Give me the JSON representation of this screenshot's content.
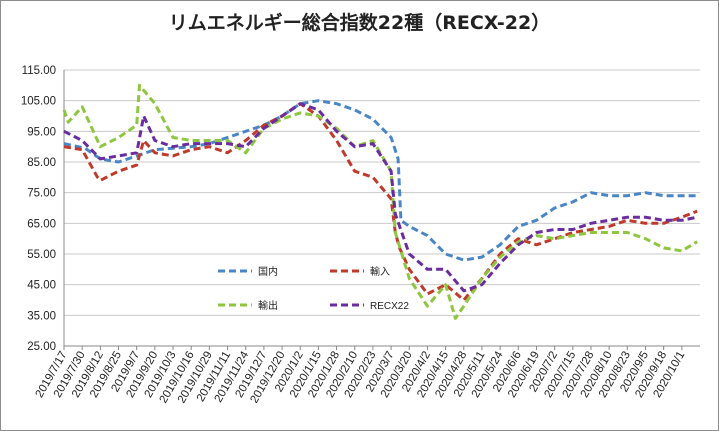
{
  "chart_data": {
    "type": "line",
    "title": "リムエネルギー総合指数22種（RECX-22）",
    "ylim": [
      25,
      115
    ],
    "y_ticks": [
      "115.00",
      "105.00",
      "95.00",
      "85.00",
      "75.00",
      "65.00",
      "55.00",
      "45.00",
      "35.00",
      "25.00"
    ],
    "y_tick_values": [
      115,
      105,
      95,
      85,
      75,
      65,
      55,
      45,
      35,
      25
    ],
    "grid": "horizontal",
    "legend_placement": "inside-bottom-left",
    "x_ticks": [
      "2019/7/17",
      "2019/7/30",
      "2019/8/12",
      "2019/8/25",
      "2019/9/7",
      "2019/9/20",
      "2019/10/3",
      "2019/10/16",
      "2019/10/29",
      "2019/11/11",
      "2019/11/24",
      "2019/12/7",
      "2019/12/20",
      "2020/1/2",
      "2020/1/15",
      "2020/1/28",
      "2020/2/10",
      "2020/2/23",
      "2020/3/7",
      "2020/3/20",
      "2020/4/2",
      "2020/4/15",
      "2020/4/28",
      "2020/5/11",
      "2020/5/24",
      "2020/6/6",
      "2020/6/19",
      "2020/7/2",
      "2020/7/15",
      "2020/7/28",
      "2020/8/10",
      "2020/8/23",
      "2020/9/5",
      "2020/9/18",
      "2020/10/1"
    ],
    "x_start": "2019/7/17",
    "x_end": "2020/10/14",
    "series": [
      {
        "name": "国内",
        "color": "#4a86c5",
        "x": [
          "2019/7/17",
          "2019/8/1",
          "2019/8/12",
          "2019/8/25",
          "2019/9/7",
          "2019/9/20",
          "2019/10/3",
          "2019/10/16",
          "2019/10/29",
          "2019/11/11",
          "2019/11/24",
          "2019/12/7",
          "2019/12/20",
          "2020/1/2",
          "2020/1/15",
          "2020/1/28",
          "2020/2/10",
          "2020/2/23",
          "2020/3/7",
          "2020/3/12",
          "2020/3/14",
          "2020/3/20",
          "2020/4/2",
          "2020/4/15",
          "2020/4/28",
          "2020/5/11",
          "2020/5/24",
          "2020/6/6",
          "2020/6/19",
          "2020/7/2",
          "2020/7/15",
          "2020/7/28",
          "2020/8/10",
          "2020/8/23",
          "2020/9/5",
          "2020/9/18",
          "2020/10/1",
          "2020/10/12"
        ],
        "y": [
          91,
          89.5,
          86,
          85,
          87,
          89,
          89.5,
          90,
          91,
          93,
          95,
          97,
          100,
          104,
          105,
          104,
          102,
          99,
          93,
          86,
          66,
          64,
          61,
          55,
          53,
          54,
          58,
          64,
          66,
          70,
          72,
          75,
          74,
          74,
          75,
          74,
          74,
          74
        ]
      },
      {
        "name": "輸入",
        "color": "#c0392b",
        "x": [
          "2019/7/17",
          "2019/7/30",
          "2019/8/10",
          "2019/8/12",
          "2019/8/25",
          "2019/9/7",
          "2019/9/12",
          "2019/9/20",
          "2019/10/3",
          "2019/10/16",
          "2019/10/29",
          "2019/11/11",
          "2019/11/24",
          "2019/12/7",
          "2019/12/20",
          "2020/1/2",
          "2020/1/15",
          "2020/1/28",
          "2020/2/10",
          "2020/2/23",
          "2020/3/7",
          "2020/3/10",
          "2020/3/13",
          "2020/3/20",
          "2020/4/2",
          "2020/4/15",
          "2020/4/28",
          "2020/5/11",
          "2020/5/24",
          "2020/6/6",
          "2020/6/19",
          "2020/7/2",
          "2020/7/15",
          "2020/7/28",
          "2020/8/10",
          "2020/8/23",
          "2020/9/5",
          "2020/9/18",
          "2020/10/1",
          "2020/10/12"
        ],
        "y": [
          90,
          89,
          80,
          79,
          82,
          84,
          92,
          88,
          87,
          89,
          90,
          88,
          92,
          97,
          100,
          104,
          100,
          92,
          82,
          80,
          73,
          62,
          57,
          50,
          42,
          45,
          40,
          47,
          55,
          60,
          58,
          60,
          62,
          63,
          64,
          66,
          65,
          65,
          67,
          69
        ]
      },
      {
        "name": "輸出",
        "color": "#8ec63f",
        "x": [
          "2019/7/17",
          "2019/7/20",
          "2019/7/30",
          "2019/8/12",
          "2019/8/25",
          "2019/9/7",
          "2019/9/9",
          "2019/9/20",
          "2019/10/3",
          "2019/10/16",
          "2019/10/29",
          "2019/11/11",
          "2019/11/24",
          "2019/12/7",
          "2019/12/20",
          "2020/1/2",
          "2020/1/15",
          "2020/1/28",
          "2020/2/10",
          "2020/2/23",
          "2020/3/7",
          "2020/3/10",
          "2020/3/20",
          "2020/4/2",
          "2020/4/15",
          "2020/4/22",
          "2020/4/28",
          "2020/5/11",
          "2020/5/24",
          "2020/6/6",
          "2020/6/19",
          "2020/7/2",
          "2020/7/15",
          "2020/7/28",
          "2020/8/10",
          "2020/8/23",
          "2020/9/5",
          "2020/9/18",
          "2020/10/1",
          "2020/10/12"
        ],
        "y": [
          102,
          98,
          103,
          90,
          93,
          97,
          110,
          104,
          93,
          92,
          92,
          92,
          88,
          96,
          99,
          101,
          100,
          96,
          90,
          92,
          82,
          62,
          47,
          38,
          45,
          34,
          38,
          47,
          54,
          59,
          61,
          60,
          61,
          62,
          62,
          62,
          60,
          57,
          56,
          59
        ]
      },
      {
        "name": "RECX22",
        "color": "#6a2c9e",
        "x": [
          "2019/7/17",
          "2019/7/30",
          "2019/8/12",
          "2019/8/25",
          "2019/9/7",
          "2019/9/12",
          "2019/9/20",
          "2019/10/3",
          "2019/10/16",
          "2019/10/29",
          "2019/11/11",
          "2019/11/24",
          "2019/12/7",
          "2019/12/20",
          "2020/1/2",
          "2020/1/15",
          "2020/1/28",
          "2020/2/10",
          "2020/2/23",
          "2020/3/7",
          "2020/3/10",
          "2020/3/20",
          "2020/4/2",
          "2020/4/15",
          "2020/4/28",
          "2020/5/11",
          "2020/5/24",
          "2020/6/6",
          "2020/6/19",
          "2020/7/2",
          "2020/7/15",
          "2020/7/28",
          "2020/8/10",
          "2020/8/23",
          "2020/9/5",
          "2020/9/18",
          "2020/10/1",
          "2020/10/12"
        ],
        "y": [
          95,
          92,
          86,
          87,
          88,
          100,
          92,
          90,
          91,
          91,
          91,
          90,
          96,
          100,
          104,
          102,
          95,
          90,
          91,
          82,
          68,
          55,
          50,
          50,
          43,
          45,
          52,
          58,
          62,
          63,
          63,
          65,
          66,
          67,
          67,
          66,
          66,
          67
        ]
      }
    ]
  }
}
